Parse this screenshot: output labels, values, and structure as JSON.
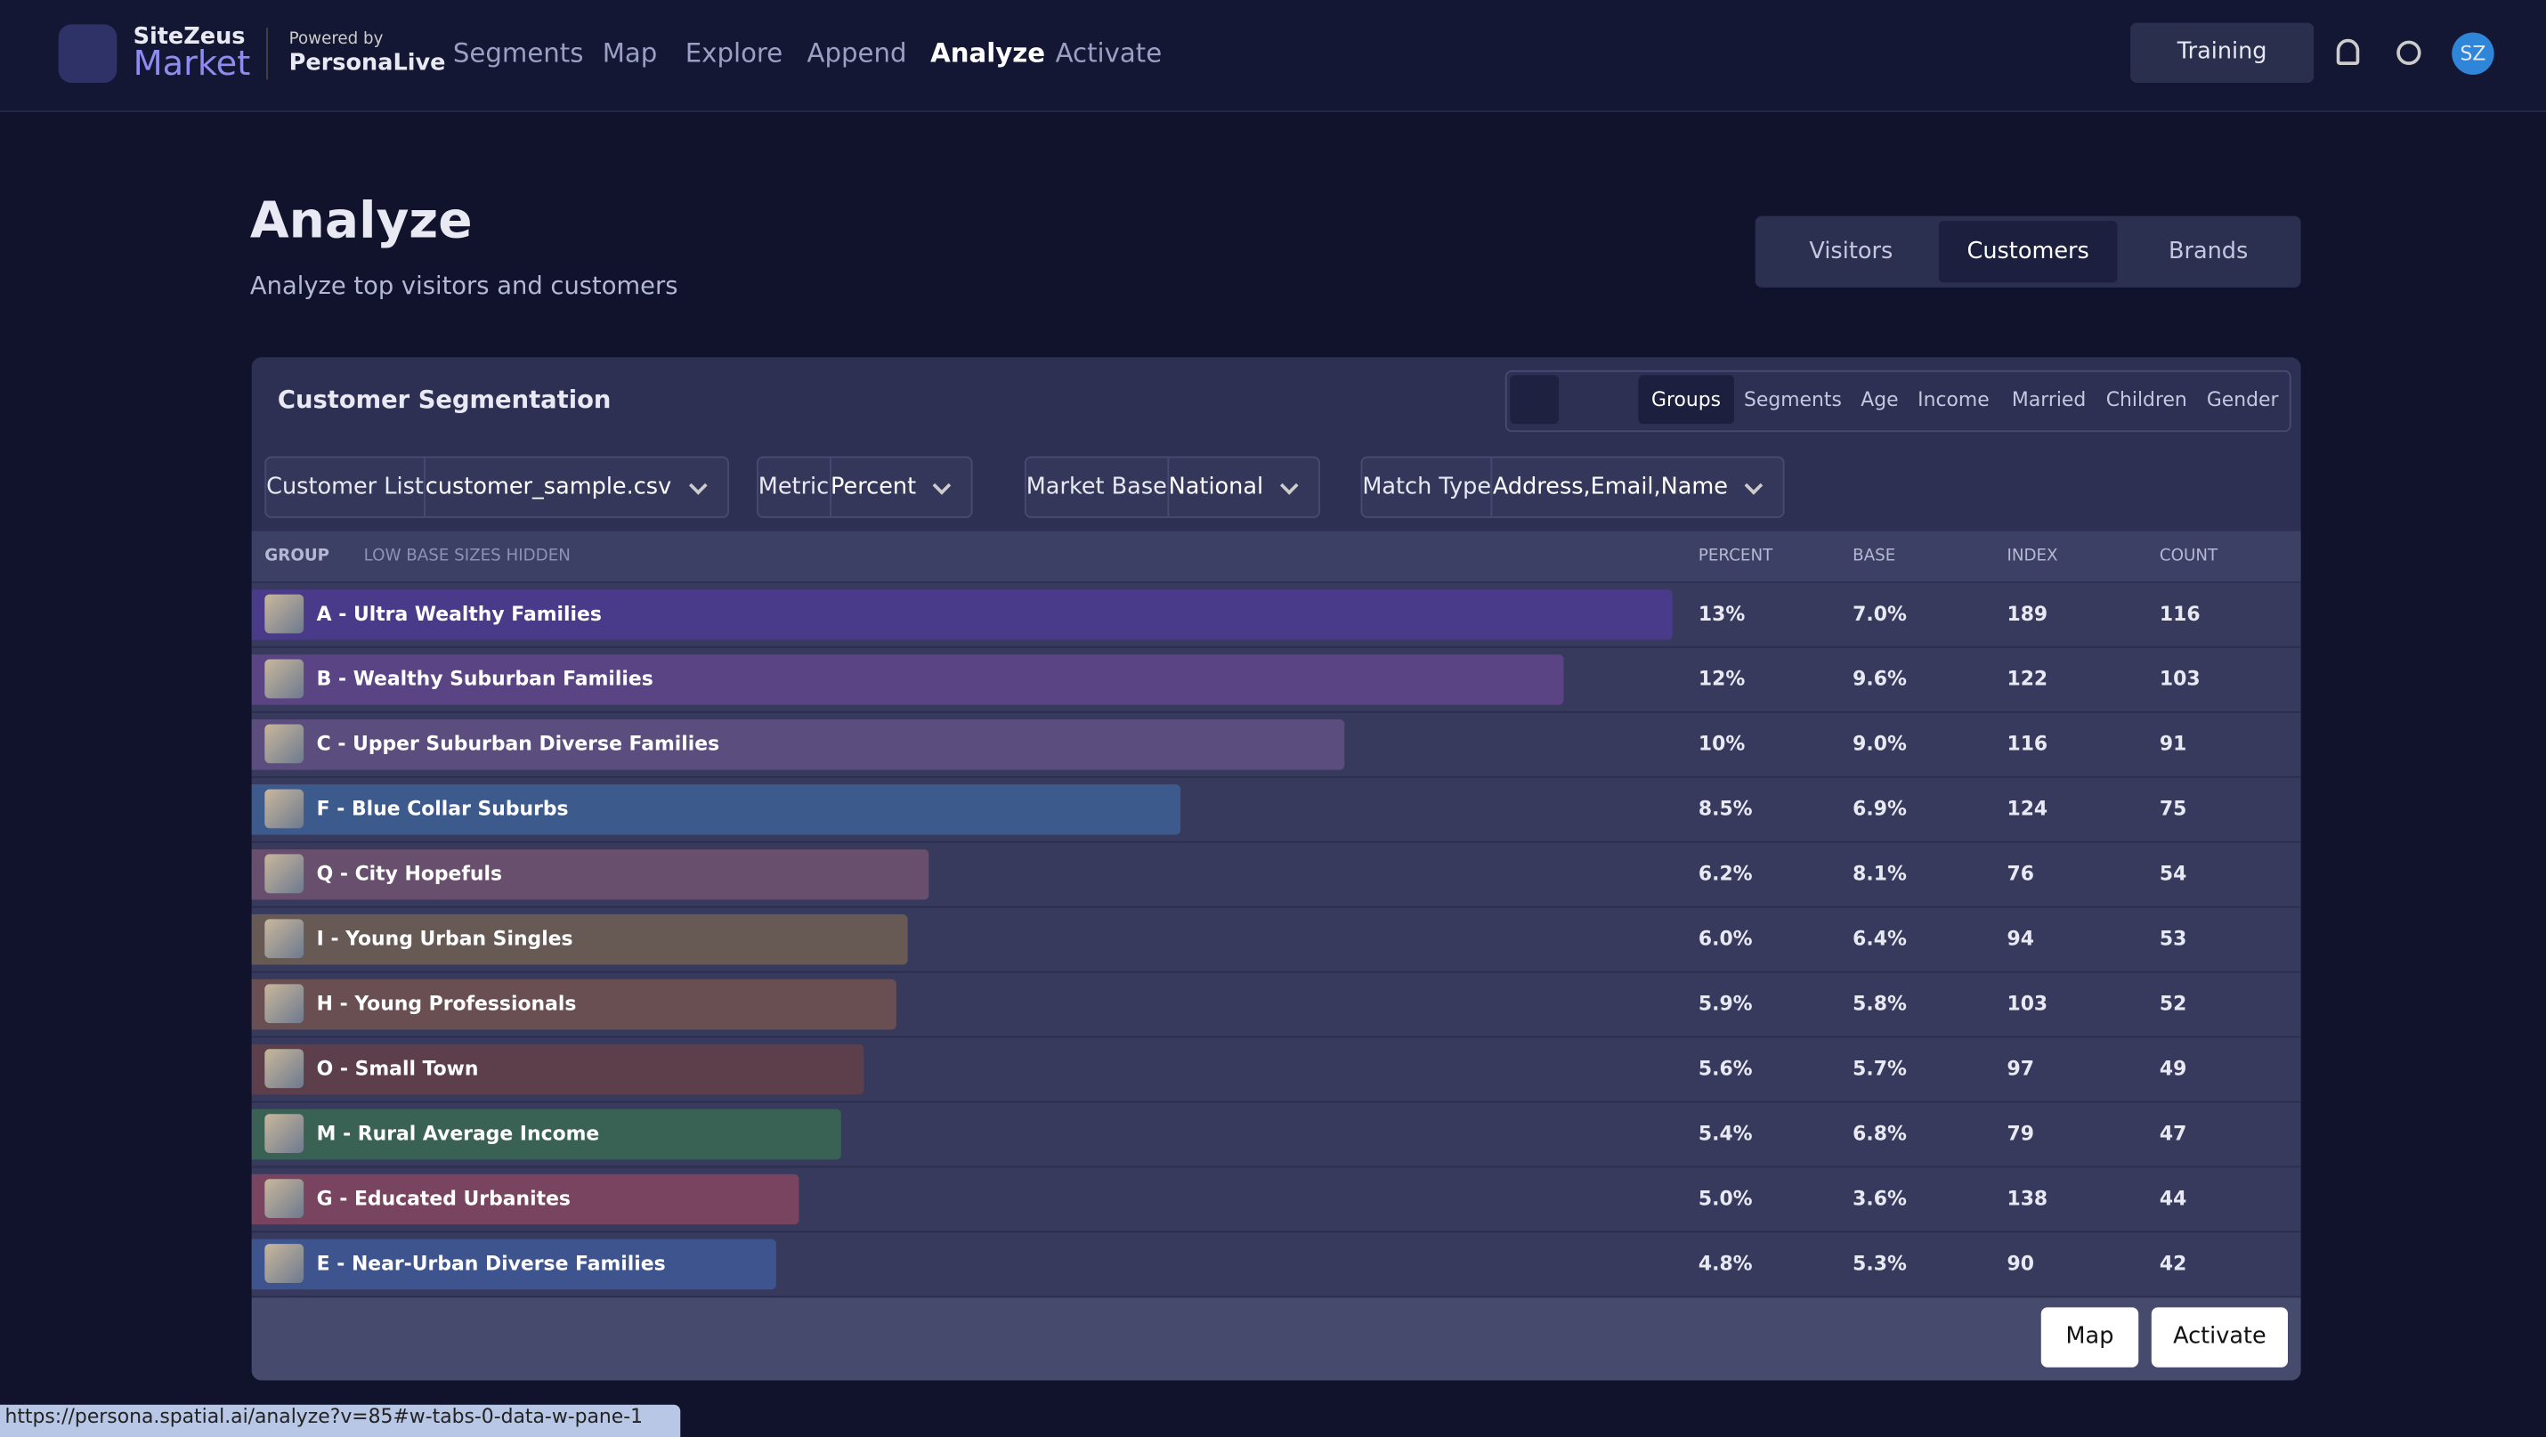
{
  "nav": {
    "brand": "SiteZeus",
    "product": "Market",
    "powered": "Powered by",
    "partner": "PersonaLive",
    "links": [
      "Segments",
      "Map",
      "Explore",
      "Append",
      "Analyze",
      "Activate"
    ],
    "training": "Training",
    "avatar": "SZ"
  },
  "header": {
    "title": "Analyze",
    "subtitle": "Analyze top visitors and customers",
    "tabs": [
      "Visitors",
      "Customers",
      "Brands"
    ]
  },
  "card": {
    "title": "Customer Segmentation",
    "views": [
      "Groups",
      "Segments",
      "Age",
      "Income",
      "Married",
      "Children",
      "Gender"
    ],
    "filters": [
      {
        "label": "Customer List",
        "value": "customer_sample.csv"
      },
      {
        "label": "Metric",
        "value": "Percent"
      },
      {
        "label": "Market Base",
        "value": "National"
      },
      {
        "label": "Match Type",
        "value": "Address,Email,Name"
      }
    ],
    "columns": {
      "group": "GROUP",
      "hidden": "LOW BASE SIZES HIDDEN",
      "percent": "PERCENT",
      "base": "BASE",
      "index": "INDEX",
      "count": "COUNT"
    },
    "buttons": [
      "Map",
      "Activate"
    ]
  },
  "table": {
    "rows": [
      {
        "group": "A - Ultra Wealthy Families",
        "percent": 13,
        "percent_label": "13%",
        "base": "7.0%",
        "index": "189",
        "count": "116",
        "color": "#4a3a8a"
      },
      {
        "group": "B - Wealthy Suburban Families",
        "percent": 12,
        "percent_label": "12%",
        "base": "9.6%",
        "index": "122",
        "count": "103",
        "color": "#5b4484"
      },
      {
        "group": "C - Upper Suburban Diverse Families",
        "percent": 10,
        "percent_label": "10%",
        "base": "9.0%",
        "index": "116",
        "count": "91",
        "color": "#5b4e7f"
      },
      {
        "group": "F - Blue Collar Suburbs",
        "percent": 8.5,
        "percent_label": "8.5%",
        "base": "6.9%",
        "index": "124",
        "count": "75",
        "color": "#3d5a8d"
      },
      {
        "group": "Q - City Hopefuls",
        "percent": 6.2,
        "percent_label": "6.2%",
        "base": "8.1%",
        "index": "76",
        "count": "54",
        "color": "#684f6d"
      },
      {
        "group": "I - Young Urban Singles",
        "percent": 6.0,
        "percent_label": "6.0%",
        "base": "6.4%",
        "index": "94",
        "count": "53",
        "color": "#675a55"
      },
      {
        "group": "H - Young Professionals",
        "percent": 5.9,
        "percent_label": "5.9%",
        "base": "5.8%",
        "index": "103",
        "count": "52",
        "color": "#694f52"
      },
      {
        "group": "O - Small Town",
        "percent": 5.6,
        "percent_label": "5.6%",
        "base": "5.7%",
        "index": "97",
        "count": "49",
        "color": "#5c3f4b"
      },
      {
        "group": "M - Rural Average Income",
        "percent": 5.4,
        "percent_label": "5.4%",
        "base": "6.8%",
        "index": "79",
        "count": "47",
        "color": "#396255"
      },
      {
        "group": "G - Educated Urbanites",
        "percent": 5.0,
        "percent_label": "5.0%",
        "base": "3.6%",
        "index": "138",
        "count": "44",
        "color": "#79445f"
      },
      {
        "group": "E - Near-Urban Diverse Families",
        "percent": 4.8,
        "percent_label": "4.8%",
        "base": "5.3%",
        "index": "90",
        "count": "42",
        "color": "#3d548f"
      }
    ]
  },
  "status_url": "https://persona.spatial.ai/analyze?v=85#w-tabs-0-data-w-pane-1"
}
